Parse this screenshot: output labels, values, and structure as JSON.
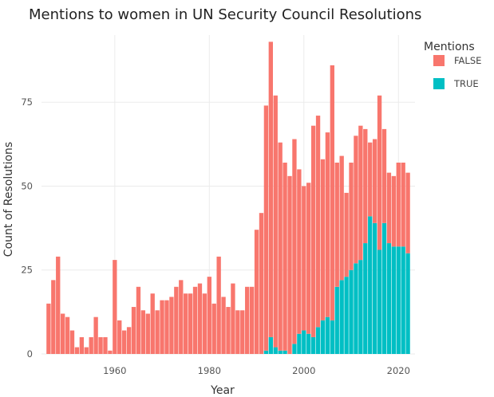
{
  "chart_data": {
    "type": "bar",
    "stacked": true,
    "title": "Mentions to women in UN Security Council Resolutions",
    "xlabel": "Year",
    "ylabel": "Count of Resolutions",
    "xlim": [
      1944.5,
      2023.5
    ],
    "ylim": [
      0,
      95
    ],
    "x_ticks": [
      1960,
      1980,
      2000,
      2020
    ],
    "y_ticks": [
      0,
      25,
      50,
      75
    ],
    "grid": true,
    "legend": {
      "title": "Mentions",
      "position": "top-right"
    },
    "x": [
      1946,
      1947,
      1948,
      1949,
      1950,
      1951,
      1952,
      1953,
      1954,
      1955,
      1956,
      1957,
      1958,
      1959,
      1960,
      1961,
      1962,
      1963,
      1964,
      1965,
      1966,
      1967,
      1968,
      1969,
      1970,
      1971,
      1972,
      1973,
      1974,
      1975,
      1976,
      1977,
      1978,
      1979,
      1980,
      1981,
      1982,
      1983,
      1984,
      1985,
      1986,
      1987,
      1988,
      1989,
      1990,
      1991,
      1992,
      1993,
      1994,
      1995,
      1996,
      1997,
      1998,
      1999,
      2000,
      2001,
      2002,
      2003,
      2004,
      2005,
      2006,
      2007,
      2008,
      2009,
      2010,
      2011,
      2012,
      2013,
      2014,
      2015,
      2016,
      2017,
      2018,
      2019,
      2020,
      2021,
      2022
    ],
    "series": [
      {
        "name": "FALSE",
        "color": "#F8766D",
        "values": [
          15,
          22,
          29,
          12,
          11,
          7,
          2,
          5,
          2,
          5,
          11,
          5,
          5,
          1,
          28,
          10,
          7,
          8,
          14,
          20,
          13,
          12,
          18,
          13,
          16,
          16,
          17,
          20,
          22,
          18,
          18,
          20,
          21,
          18,
          23,
          15,
          29,
          17,
          14,
          21,
          13,
          13,
          20,
          20,
          37,
          42,
          73,
          88,
          75,
          62,
          56,
          53,
          61,
          49,
          43,
          45,
          63,
          63,
          48,
          55,
          76,
          37,
          37,
          25,
          32,
          38,
          40,
          34,
          22,
          25,
          46,
          28,
          21,
          21,
          25,
          25,
          24
        ]
      },
      {
        "name": "TRUE",
        "color": "#00BFC4",
        "values": [
          0,
          0,
          0,
          0,
          0,
          0,
          0,
          0,
          0,
          0,
          0,
          0,
          0,
          0,
          0,
          0,
          0,
          0,
          0,
          0,
          0,
          0,
          0,
          0,
          0,
          0,
          0,
          0,
          0,
          0,
          0,
          0,
          0,
          0,
          0,
          0,
          0,
          0,
          0,
          0,
          0,
          0,
          0,
          0,
          0,
          0,
          1,
          5,
          2,
          1,
          1,
          0,
          3,
          6,
          7,
          6,
          5,
          8,
          10,
          11,
          10,
          20,
          22,
          23,
          25,
          27,
          28,
          33,
          41,
          39,
          31,
          39,
          33,
          32,
          32,
          32,
          30
        ]
      }
    ]
  }
}
